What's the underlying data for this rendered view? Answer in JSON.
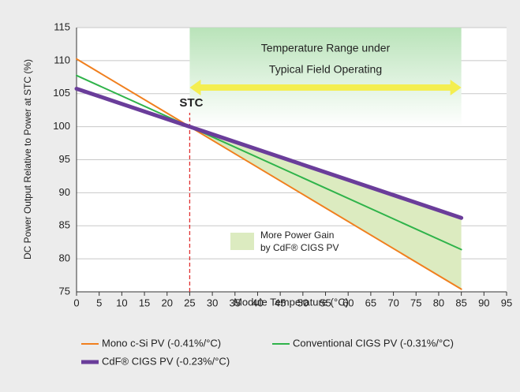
{
  "chart_data": {
    "type": "line",
    "x_label": "Module Temperature (°C)",
    "y_label": "DC Power Output Relative to Power at STC (%)",
    "x": [
      0,
      25,
      85
    ],
    "series": [
      {
        "name": "Mono c-Si PV (-0.41%/°C)",
        "color": "#f07f1e",
        "values": [
          110.25,
          100,
          75.4
        ]
      },
      {
        "name": "Conventional CIGS PV (-0.31%/°C)",
        "color": "#2fb34a",
        "values": [
          107.75,
          100,
          81.4
        ]
      },
      {
        "name": "CdF® CIGS PV (-0.23%/°C)",
        "color": "#6a3d9a",
        "values": [
          105.75,
          100,
          86.2
        ]
      }
    ],
    "xlim": [
      0,
      95
    ],
    "xticks": [
      0,
      5,
      10,
      15,
      20,
      25,
      30,
      35,
      40,
      45,
      50,
      55,
      60,
      65,
      70,
      75,
      80,
      85,
      90,
      95
    ],
    "ylim": [
      75,
      115
    ],
    "yticks": [
      75,
      80,
      85,
      90,
      95,
      100,
      105,
      110,
      115
    ],
    "grid": true,
    "annotations": {
      "range_line1": "Temperature Range under",
      "range_line2": "Typical Field Operating",
      "stc": "STC",
      "gain_line1": "More Power Gain",
      "gain_line2": "by CdF® CIGS PV"
    }
  }
}
